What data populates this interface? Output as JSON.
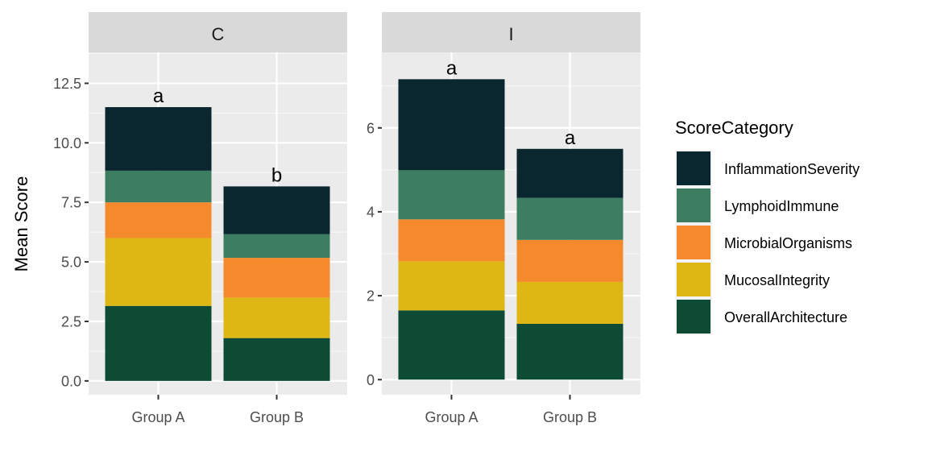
{
  "chart_data": {
    "type": "bar",
    "stacked": true,
    "ylabel": "Mean Score",
    "xlabel": "",
    "categories": [
      "Group A",
      "Group B"
    ],
    "legend": {
      "title": "ScoreCategory",
      "position": "right",
      "items": [
        {
          "name": "InflammationSeverity",
          "color": "#0a2730"
        },
        {
          "name": "LymphoidImmune",
          "color": "#3d7e62"
        },
        {
          "name": "MicrobialOrganisms",
          "color": "#f58a2c"
        },
        {
          "name": "MucosalIntegrity",
          "color": "#dfb715"
        },
        {
          "name": "OverallArchitecture",
          "color": "#0e4b35"
        }
      ]
    },
    "panels": [
      {
        "strip": "C",
        "ylim": [
          -0.58,
          13.8
        ],
        "yticks": [
          0.0,
          2.5,
          5.0,
          7.5,
          10.0,
          12.5
        ],
        "ytick_labels": [
          "0.0",
          "2.5",
          "5.0",
          "7.5",
          "10.0",
          "12.5"
        ],
        "letters": [
          "a",
          "b"
        ],
        "series": [
          {
            "name": "OverallArchitecture",
            "values": [
              3.15,
              1.8
            ]
          },
          {
            "name": "MucosalIntegrity",
            "values": [
              2.85,
              1.7
            ]
          },
          {
            "name": "MicrobialOrganisms",
            "values": [
              1.5,
              1.67
            ]
          },
          {
            "name": "LymphoidImmune",
            "values": [
              1.33,
              1.0
            ]
          },
          {
            "name": "InflammationSeverity",
            "values": [
              2.67,
              2.0
            ]
          }
        ]
      },
      {
        "strip": "I",
        "ylim": [
          -0.36,
          7.8
        ],
        "yticks": [
          0,
          2,
          4,
          6
        ],
        "ytick_labels": [
          "0",
          "2",
          "4",
          "6"
        ],
        "letters": [
          "a",
          "a"
        ],
        "series": [
          {
            "name": "OverallArchitecture",
            "values": [
              1.65,
              1.33
            ]
          },
          {
            "name": "MucosalIntegrity",
            "values": [
              1.17,
              1.0
            ]
          },
          {
            "name": "MicrobialOrganisms",
            "values": [
              1.0,
              1.0
            ]
          },
          {
            "name": "LymphoidImmune",
            "values": [
              1.17,
              1.0
            ]
          },
          {
            "name": "InflammationSeverity",
            "values": [
              2.17,
              1.17
            ]
          }
        ]
      }
    ]
  }
}
